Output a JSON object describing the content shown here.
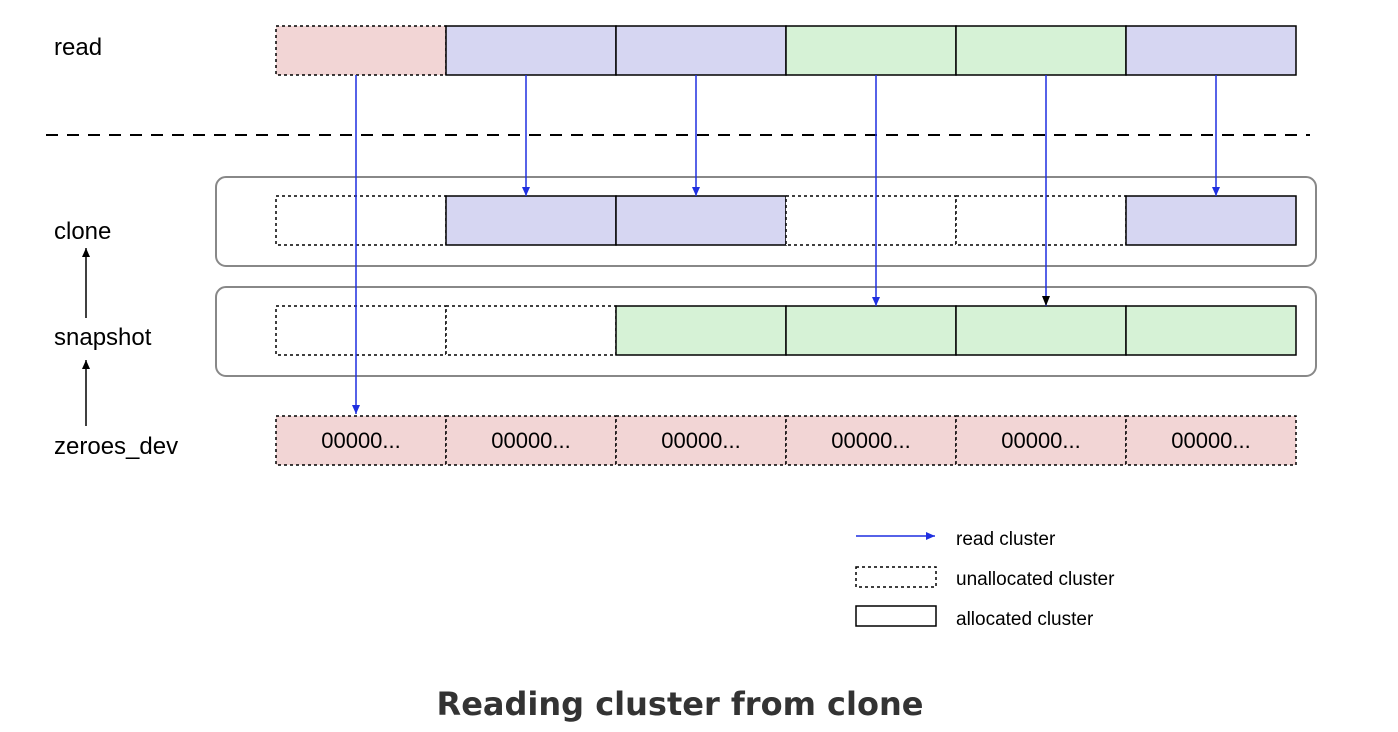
{
  "rows": {
    "read": "read",
    "clone": "clone",
    "snapshot": "snapshot",
    "zeroes_dev": "zeroes_dev"
  },
  "zero_cell_text": "00000...",
  "cells": {
    "read": [
      "zero",
      "clone",
      "clone",
      "snapshot",
      "snapshot",
      "clone"
    ],
    "clone": [
      "unallocated",
      "allocated",
      "allocated",
      "unallocated",
      "unallocated",
      "allocated"
    ],
    "snapshot": [
      "unallocated",
      "unallocated",
      "allocated",
      "allocated",
      "allocated",
      "allocated"
    ],
    "zeroes_dev": [
      "unallocated",
      "unallocated",
      "unallocated",
      "unallocated",
      "unallocated",
      "unallocated"
    ]
  },
  "legend": {
    "read_cluster": "read cluster",
    "unallocated_cluster": "unallocated cluster",
    "allocated_cluster": "allocated cluster"
  },
  "colors": {
    "zero": "#f2d5d5",
    "clone": "#d6d6f2",
    "snapshot": "#d6f2d6",
    "arrow_read": "#1f2fe0",
    "arrow_hierarchy": "#000000",
    "frame": "#888888",
    "title": "#333333"
  },
  "title": "Reading cluster from clone"
}
